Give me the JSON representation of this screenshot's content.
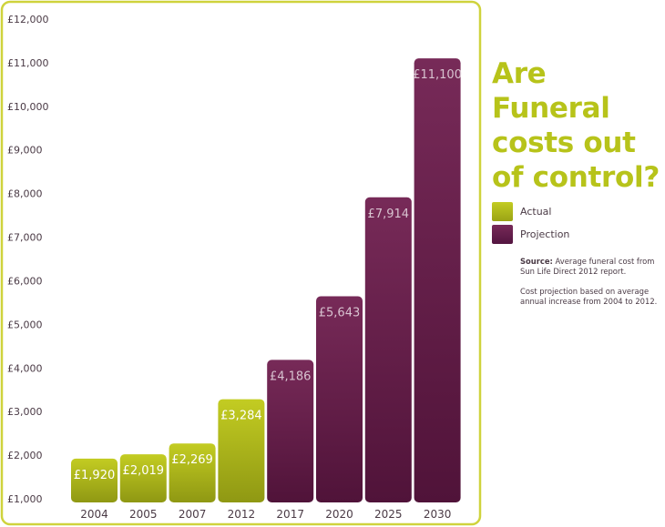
{
  "chart_data": {
    "type": "bar",
    "title": "Are Funeral costs out of control?",
    "categories": [
      "2004",
      "2005",
      "2007",
      "2012",
      "2017",
      "2020",
      "2025",
      "2030"
    ],
    "values": [
      1920,
      2019,
      2269,
      3284,
      4186,
      5643,
      7914,
      11100
    ],
    "value_labels": [
      "£1,920",
      "£2,019",
      "£2,269",
      "£3,284",
      "£4,186",
      "£5,643",
      "£7,914",
      "£11,100"
    ],
    "kinds": [
      "actual",
      "actual",
      "actual",
      "actual",
      "projection",
      "projection",
      "projection",
      "projection"
    ],
    "y_ticks": [
      1000,
      2000,
      3000,
      4000,
      5000,
      6000,
      7000,
      8000,
      9000,
      10000,
      11000,
      12000
    ],
    "y_tick_labels": [
      "£1,000",
      "£2,000",
      "£3,000",
      "£4,000",
      "£5,000",
      "£6,000",
      "£7,000",
      "£8,000",
      "£9,000",
      "£10,000",
      "£11,000",
      "£12,000"
    ],
    "ylim": [
      1000,
      12000
    ],
    "grid": true,
    "legend": [
      {
        "key": "actual",
        "label": "Actual",
        "color": "#b9c21d"
      },
      {
        "key": "projection",
        "label": "Projection",
        "color": "#6f2652"
      }
    ],
    "legend_position": "right"
  },
  "colors": {
    "frame": "#cfd33c",
    "title": "#b7c31a",
    "actual_top": "#bfc91f",
    "actual_bottom": "#8e9712",
    "projection_top": "#772a58",
    "projection_bottom": "#4e1238"
  },
  "notes": {
    "source_label": "Source:",
    "source_text": " Average funeral cost from Sun Life Direct 2012 report.",
    "projection_text": "Cost projection based on average annual increase from 2004 to 2012."
  }
}
